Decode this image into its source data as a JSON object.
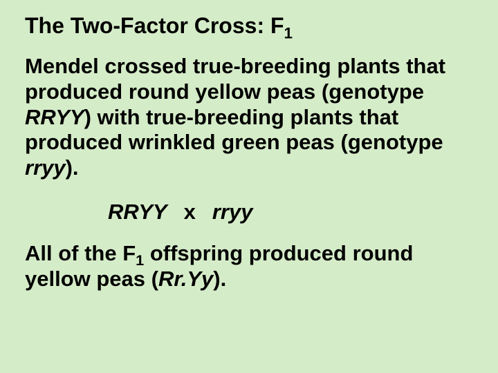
{
  "background_color": "#d5ecc8",
  "text_color": "#000000",
  "font_family": "Arial",
  "title": {
    "prefix": "The Two-Factor Cross: F",
    "subscript": "1",
    "fontsize": 32,
    "fontweight": "bold"
  },
  "paragraph1": {
    "t1": "Mendel crossed true-breeding plants that produced round yellow peas (genotype ",
    "g1": "RRYY",
    "t2": ") with true-breeding plants that produced wrinkled green peas (genotype ",
    "g2": "rryy",
    "t3": ").",
    "fontsize": 31,
    "fontweight": "bold"
  },
  "cross": {
    "left": "RRYY",
    "operator": "x",
    "right": "rryy",
    "fontsize": 31,
    "fontstyle": "italic",
    "fontweight": "bold"
  },
  "paragraph2": {
    "t1": "All of the F",
    "sub": "1",
    "t2": " offspring produced round yellow peas (",
    "g1": "Rr.Yy",
    "t3": ").",
    "fontsize": 31,
    "fontweight": "bold"
  }
}
